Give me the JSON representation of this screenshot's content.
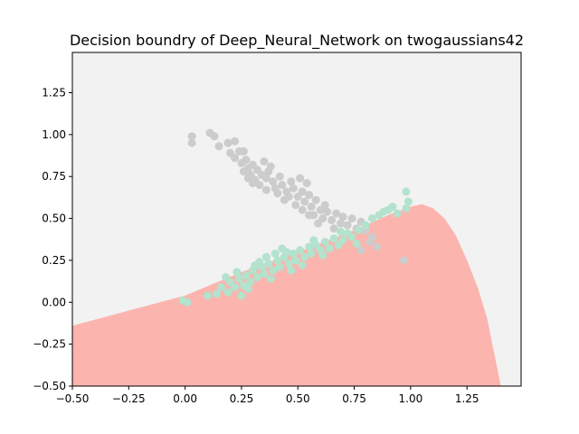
{
  "chart_data": {
    "type": "scatter",
    "title": "Decision boundry of Deep_Neural_Network on twogaussians42",
    "xlabel": "",
    "ylabel": "",
    "xlim": [
      -0.5,
      1.49
    ],
    "ylim": [
      -0.5,
      1.49
    ],
    "x_ticks": [
      -0.5,
      -0.25,
      0.0,
      0.25,
      0.5,
      0.75,
      1.0,
      1.25
    ],
    "x_tick_labels": [
      "−0.50",
      "−0.25",
      "0.00",
      "0.25",
      "0.50",
      "0.75",
      "1.00",
      "1.25"
    ],
    "y_ticks": [
      -0.5,
      -0.25,
      0.0,
      0.25,
      0.5,
      0.75,
      1.0,
      1.25
    ],
    "y_tick_labels": [
      "−0.50",
      "−0.25",
      "0.00",
      "0.25",
      "0.50",
      "0.75",
      "1.00",
      "1.25"
    ],
    "grid": false,
    "legend": "none",
    "colors": {
      "background_region": "#f2f2f2",
      "class_region": "#fbb4ae",
      "class0_points": "#cccccc",
      "class1_points": "#b3e2cd"
    },
    "decision_boundary": [
      [
        -0.5,
        -0.14
      ],
      [
        0.0,
        0.04
      ],
      [
        0.25,
        0.18
      ],
      [
        0.5,
        0.3
      ],
      [
        0.75,
        0.43
      ],
      [
        0.9,
        0.52
      ],
      [
        1.0,
        0.57
      ],
      [
        1.05,
        0.585
      ],
      [
        1.1,
        0.56
      ],
      [
        1.15,
        0.5
      ],
      [
        1.2,
        0.4
      ],
      [
        1.25,
        0.25
      ],
      [
        1.3,
        0.08
      ],
      [
        1.34,
        -0.1
      ],
      [
        1.37,
        -0.3
      ],
      [
        1.4,
        -0.5
      ]
    ],
    "series": [
      {
        "class": 0,
        "points": [
          [
            0.03,
            0.99
          ],
          [
            0.03,
            0.95
          ],
          [
            0.11,
            1.01
          ],
          [
            0.13,
            0.99
          ],
          [
            0.15,
            0.93
          ],
          [
            0.19,
            0.95
          ],
          [
            0.22,
            0.96
          ],
          [
            0.2,
            0.89
          ],
          [
            0.24,
            0.9
          ],
          [
            0.26,
            0.9
          ],
          [
            0.22,
            0.86
          ],
          [
            0.25,
            0.83
          ],
          [
            0.27,
            0.85
          ],
          [
            0.28,
            0.8
          ],
          [
            0.3,
            0.82
          ],
          [
            0.32,
            0.79
          ],
          [
            0.26,
            0.78
          ],
          [
            0.29,
            0.76
          ],
          [
            0.31,
            0.73
          ],
          [
            0.34,
            0.76
          ],
          [
            0.36,
            0.74
          ],
          [
            0.33,
            0.7
          ],
          [
            0.37,
            0.78
          ],
          [
            0.39,
            0.72
          ],
          [
            0.4,
            0.68
          ],
          [
            0.42,
            0.75
          ],
          [
            0.43,
            0.7
          ],
          [
            0.45,
            0.66
          ],
          [
            0.47,
            0.72
          ],
          [
            0.48,
            0.68
          ],
          [
            0.5,
            0.63
          ],
          [
            0.44,
            0.61
          ],
          [
            0.52,
            0.66
          ],
          [
            0.53,
            0.6
          ],
          [
            0.55,
            0.64
          ],
          [
            0.56,
            0.57
          ],
          [
            0.58,
            0.61
          ],
          [
            0.6,
            0.55
          ],
          [
            0.49,
            0.58
          ],
          [
            0.46,
            0.63
          ],
          [
            0.54,
            0.71
          ],
          [
            0.51,
            0.74
          ],
          [
            0.38,
            0.81
          ],
          [
            0.35,
            0.84
          ],
          [
            0.41,
            0.65
          ],
          [
            0.57,
            0.52
          ],
          [
            0.61,
            0.5
          ],
          [
            0.63,
            0.54
          ],
          [
            0.65,
            0.49
          ],
          [
            0.67,
            0.53
          ],
          [
            0.69,
            0.47
          ],
          [
            0.7,
            0.51
          ],
          [
            0.72,
            0.46
          ],
          [
            0.74,
            0.5
          ],
          [
            0.76,
            0.44
          ],
          [
            0.78,
            0.48
          ],
          [
            0.8,
            0.43
          ],
          [
            0.62,
            0.58
          ],
          [
            0.59,
            0.47
          ],
          [
            0.3,
            0.71
          ],
          [
            0.52,
            0.55
          ],
          [
            0.55,
            0.52
          ],
          [
            0.85,
            0.33
          ],
          [
            0.83,
            0.39
          ],
          [
            0.97,
            0.25
          ],
          [
            0.78,
            0.31
          ],
          [
            0.82,
            0.36
          ],
          [
            0.66,
            0.44
          ],
          [
            0.28,
            0.74
          ],
          [
            0.36,
            0.67
          ]
        ]
      },
      {
        "class": 1,
        "points": [
          [
            -0.01,
            0.01
          ],
          [
            0.01,
            0.0
          ],
          [
            0.1,
            0.04
          ],
          [
            0.14,
            0.05
          ],
          [
            0.16,
            0.09
          ],
          [
            0.19,
            0.06
          ],
          [
            0.2,
            0.12
          ],
          [
            0.22,
            0.09
          ],
          [
            0.24,
            0.14
          ],
          [
            0.26,
            0.1
          ],
          [
            0.27,
            0.16
          ],
          [
            0.29,
            0.12
          ],
          [
            0.3,
            0.19
          ],
          [
            0.32,
            0.15
          ],
          [
            0.34,
            0.21
          ],
          [
            0.35,
            0.17
          ],
          [
            0.37,
            0.23
          ],
          [
            0.39,
            0.19
          ],
          [
            0.41,
            0.25
          ],
          [
            0.42,
            0.21
          ],
          [
            0.44,
            0.27
          ],
          [
            0.46,
            0.23
          ],
          [
            0.48,
            0.29
          ],
          [
            0.49,
            0.25
          ],
          [
            0.51,
            0.31
          ],
          [
            0.53,
            0.27
          ],
          [
            0.55,
            0.33
          ],
          [
            0.56,
            0.29
          ],
          [
            0.58,
            0.34
          ],
          [
            0.6,
            0.31
          ],
          [
            0.62,
            0.36
          ],
          [
            0.64,
            0.32
          ],
          [
            0.66,
            0.38
          ],
          [
            0.68,
            0.34
          ],
          [
            0.7,
            0.37
          ],
          [
            0.72,
            0.41
          ],
          [
            0.74,
            0.39
          ],
          [
            0.77,
            0.43
          ],
          [
            0.8,
            0.46
          ],
          [
            0.83,
            0.5
          ],
          [
            0.86,
            0.52
          ],
          [
            0.88,
            0.54
          ],
          [
            0.9,
            0.55
          ],
          [
            0.92,
            0.57
          ],
          [
            0.94,
            0.53
          ],
          [
            0.98,
            0.66
          ],
          [
            0.99,
            0.6
          ],
          [
            0.98,
            0.56
          ],
          [
            0.23,
            0.18
          ],
          [
            0.31,
            0.22
          ],
          [
            0.36,
            0.27
          ],
          [
            0.43,
            0.32
          ],
          [
            0.47,
            0.19
          ],
          [
            0.52,
            0.22
          ],
          [
            0.57,
            0.37
          ],
          [
            0.61,
            0.28
          ],
          [
            0.38,
            0.14
          ],
          [
            0.28,
            0.08
          ],
          [
            0.33,
            0.24
          ],
          [
            0.25,
            0.04
          ],
          [
            0.45,
            0.3
          ],
          [
            0.69,
            0.42
          ],
          [
            0.76,
            0.35
          ],
          [
            0.18,
            0.15
          ],
          [
            0.4,
            0.29
          ]
        ]
      }
    ]
  }
}
